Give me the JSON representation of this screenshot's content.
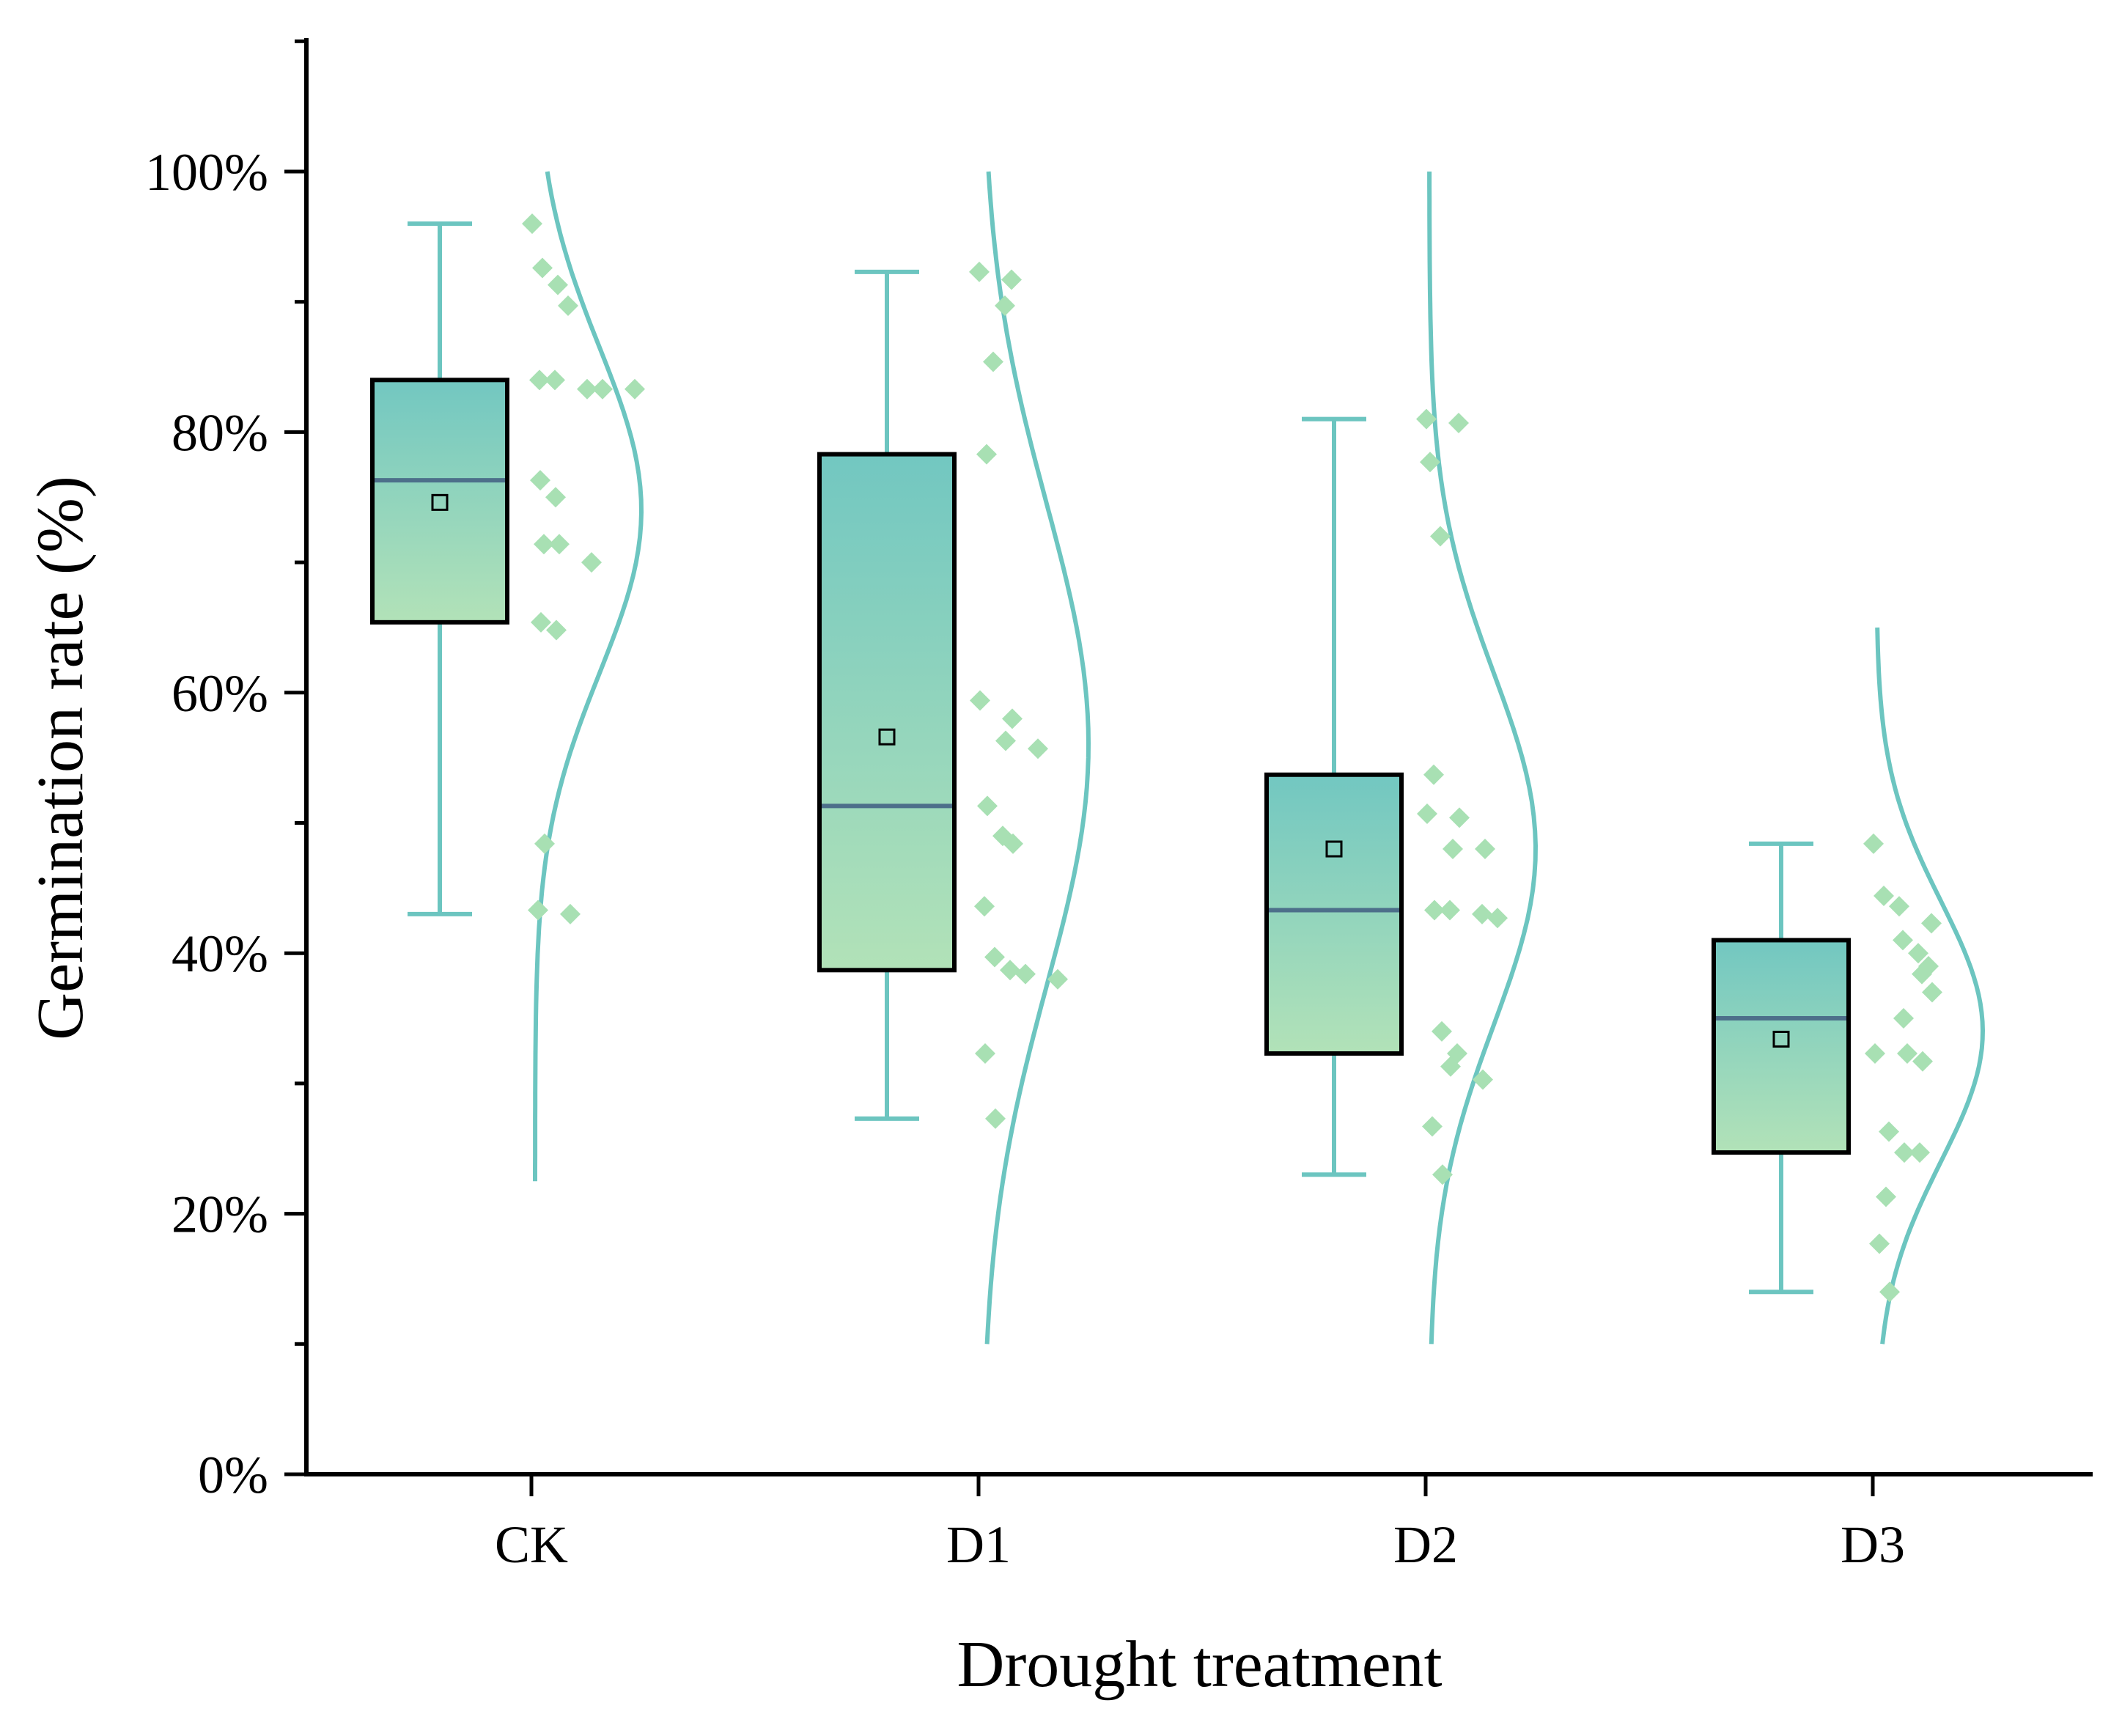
{
  "chart_data": {
    "type": "box",
    "title": "",
    "xlabel": "Drought treatment",
    "ylabel": "Germination rate (%)",
    "ylim": [
      0,
      110
    ],
    "yticks": [
      0,
      20,
      40,
      60,
      80,
      100
    ],
    "ytick_labels": [
      "0%",
      "20%",
      "40%",
      "60%",
      "80%",
      "100%"
    ],
    "categories": [
      "CK",
      "D1",
      "D2",
      "D3"
    ],
    "colors": {
      "box_top": "#72c7c1",
      "box_bottom": "#b2e2b8",
      "box_border": "#000000",
      "whisker": "#6cc5c0",
      "median": "#4d6f8a",
      "points": "#a8e0b3",
      "density": "#6cc5c0"
    },
    "series": [
      {
        "name": "CK",
        "whisker_low": 43,
        "q1": 65.4,
        "median": 76.3,
        "q3": 84,
        "whisker_high": 96,
        "mean": 74.6,
        "density_range": [
          22.5,
          100
        ],
        "density_mean": 74,
        "density_sd": 12.5,
        "points": [
          96,
          92.6,
          91.3,
          89.7,
          84,
          84,
          83.3,
          83.3,
          83.3,
          76.3,
          75,
          71.4,
          71.4,
          70,
          65.4,
          64.8,
          48.4,
          43.3,
          43
        ]
      },
      {
        "name": "D1",
        "whisker_low": 27.3,
        "q1": 38.7,
        "median": 51.3,
        "q3": 78.3,
        "whisker_high": 92.3,
        "mean": 56.6,
        "density_range": [
          10,
          100
        ],
        "density_mean": 56,
        "density_sd": 18.5,
        "points": [
          92.3,
          91.7,
          89.7,
          85.4,
          78.3,
          59.4,
          58,
          56.3,
          55.7,
          51.3,
          49,
          48.4,
          43.6,
          39.7,
          38.7,
          38.4,
          38,
          32.3,
          27.3
        ]
      },
      {
        "name": "D2",
        "whisker_low": 23,
        "q1": 32.3,
        "median": 43.3,
        "q3": 53.7,
        "whisker_high": 81,
        "mean": 48,
        "density_range": [
          10,
          100
        ],
        "density_mean": 48,
        "density_sd": 13.5,
        "points": [
          81,
          80.7,
          77.7,
          72,
          53.7,
          50.7,
          50.4,
          48,
          48,
          43.3,
          43.3,
          43,
          42.7,
          34,
          32.3,
          31.3,
          30.3,
          26.7,
          23
        ]
      },
      {
        "name": "D3",
        "whisker_low": 14,
        "q1": 24.7,
        "median": 35,
        "q3": 41,
        "whisker_high": 48.4,
        "mean": 33.4,
        "density_range": [
          10,
          65
        ],
        "density_mean": 34,
        "density_sd": 10,
        "points": [
          48.4,
          44.4,
          43.6,
          42.3,
          41,
          40,
          39,
          38.4,
          37,
          35,
          32.3,
          32.3,
          31.7,
          26.3,
          24.7,
          24.7,
          21.3,
          17.7,
          14
        ]
      }
    ]
  }
}
